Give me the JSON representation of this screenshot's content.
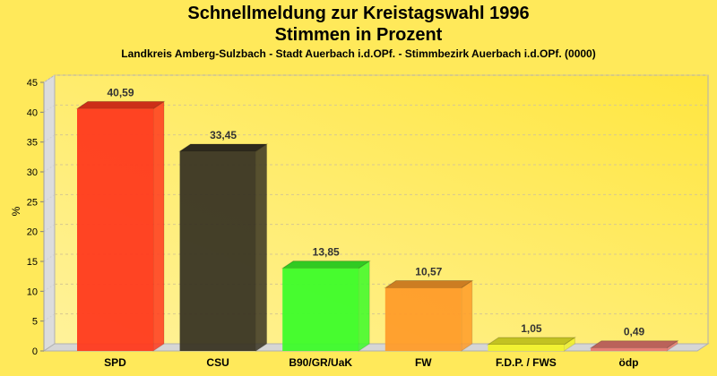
{
  "chart_data": {
    "type": "bar",
    "title": "Schnellmeldung zur Kreistagswahl 1996",
    "subtitle": "Stimmen in Prozent",
    "subsubtitle": "Landkreis Amberg-Sulzbach - Stadt Auerbach i.d.OPf. - Stimmbezirk Auerbach i.d.OPf. (0000)",
    "xlabel": "",
    "ylabel": "%",
    "ylim": [
      0,
      45
    ],
    "yticks": [
      0,
      5,
      10,
      15,
      20,
      25,
      30,
      35,
      40,
      45
    ],
    "grid": true,
    "categories": [
      "SPD",
      "CSU",
      "B90/GR/UaK",
      "FW",
      "F.D.P. / FWS",
      "ödp"
    ],
    "values": [
      40.59,
      33.45,
      13.85,
      10.57,
      1.05,
      0.49
    ],
    "value_labels": [
      "40,59",
      "33,45",
      "13,85",
      "10,57",
      "1,05",
      "0,49"
    ],
    "colors": [
      "#ff3a1e",
      "#3a3524",
      "#3dfc2a",
      "#ff9c2a",
      "#f2f22a",
      "#e87a70"
    ]
  }
}
